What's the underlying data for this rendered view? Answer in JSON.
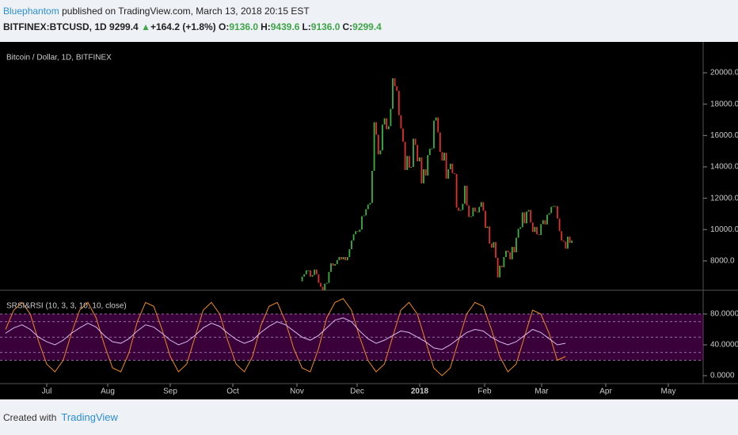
{
  "header": {
    "author": "Bluephantom",
    "published": "published on TradingView.com, March 13, 2018 20:15 EST",
    "symbol": "BITFINEX:BTCUSD, 1D",
    "last": "9299.4",
    "arrow": "▲",
    "change": "+164.2 (+1.8%)",
    "ohlc": [
      {
        "label": "O:",
        "value": "9136.0"
      },
      {
        "label": "H:",
        "value": "9439.6"
      },
      {
        "label": "L:",
        "value": "9136.0"
      },
      {
        "label": "C:",
        "value": "9299.4"
      }
    ]
  },
  "chart_data": [
    {
      "type": "candlestick",
      "title": "Bitcoin / Dollar, 1D, BITFINEX",
      "up_color": "#3cb043",
      "down_color": "#e0302f",
      "values": [
        6700,
        7000,
        7150,
        7400,
        7400,
        7000,
        7100,
        7450,
        7150,
        6600,
        6350,
        5900,
        6550,
        6600,
        7300,
        7850,
        7700,
        7800,
        8050,
        8250,
        8100,
        8250,
        8050,
        8250,
        8750,
        9300,
        9700,
        9900,
        9850,
        10000,
        10850,
        10900,
        11300,
        11600,
        11700,
        13750,
        16850,
        16050,
        14800,
        15050,
        16700,
        17100,
        16400,
        16600,
        17700,
        19650,
        19140,
        18850,
        17300,
        16450,
        15600,
        13800,
        14700,
        13950,
        14000,
        15800,
        15400,
        14350,
        14600,
        12950,
        13850,
        13450,
        14750,
        15150,
        15180,
        16950,
        17150,
        16200,
        14950,
        14400,
        14900,
        13250,
        13850,
        14200,
        13600,
        13550,
        11400,
        11200,
        11250,
        11650,
        12800,
        11550,
        10800,
        10850,
        11400,
        11150,
        11100,
        11450,
        11750,
        11200,
        10100,
        10200,
        9100,
        8850,
        9200,
        8200,
        6950,
        7700,
        7600,
        8250,
        8650,
        8550,
        8100,
        8900,
        8550,
        9480,
        10050,
        10150,
        11100,
        10400,
        11150,
        11250,
        10450,
        9850,
        10170,
        9700,
        9650,
        10350,
        10600,
        10330,
        10950,
        11050,
        11450,
        11500,
        11500,
        10700,
        9900,
        9300,
        9230,
        8780,
        9550,
        9150,
        9299.4
      ],
      "ylim": [
        6130,
        21970
      ],
      "yticks": [
        {
          "value": 8000,
          "label": "8000.0"
        },
        {
          "value": 10000,
          "label": "10000.0"
        },
        {
          "value": 12000,
          "label": "12000.0"
        },
        {
          "value": 14000,
          "label": "14000.0"
        },
        {
          "value": 16000,
          "label": "16000.0"
        },
        {
          "value": 18000,
          "label": "18000.0"
        },
        {
          "value": 20000,
          "label": "20000.0"
        }
      ]
    },
    {
      "type": "line",
      "title": "SRSI&RSI (10, 3, 3, 10, 10, close)",
      "band": [
        20,
        80
      ],
      "band_color": "rgba(128,0,128,0.45)",
      "levels": [
        80,
        70,
        50,
        30,
        20
      ],
      "series": [
        {
          "color": "#f08a24",
          "values": [
            60,
            85,
            95,
            80,
            45,
            15,
            5,
            20,
            55,
            85,
            95,
            75,
            40,
            10,
            5,
            30,
            70,
            95,
            90,
            60,
            25,
            5,
            15,
            50,
            85,
            95,
            80,
            45,
            15,
            5,
            25,
            65,
            90,
            95,
            70,
            35,
            10,
            5,
            35,
            75,
            95,
            100,
            85,
            50,
            20,
            5,
            15,
            50,
            85,
            95,
            80,
            45,
            10,
            0,
            10,
            45,
            80,
            95,
            90,
            60,
            25,
            5,
            15,
            50,
            85,
            80,
            55,
            20,
            25
          ]
        },
        {
          "color": "#d9b8f0",
          "values": [
            55,
            62,
            66,
            60,
            50,
            44,
            40,
            46,
            55,
            62,
            68,
            63,
            52,
            44,
            42,
            48,
            58,
            66,
            63,
            55,
            46,
            40,
            44,
            52,
            62,
            68,
            64,
            55,
            47,
            42,
            46,
            56,
            64,
            70,
            66,
            58,
            50,
            46,
            52,
            62,
            72,
            75,
            70,
            58,
            48,
            42,
            46,
            52,
            58,
            56,
            50,
            44,
            36,
            34,
            40,
            48,
            56,
            60,
            58,
            50,
            44,
            40,
            44,
            52,
            60,
            56,
            48,
            40,
            42
          ]
        }
      ],
      "ylim": [
        -10.26,
        109.74
      ],
      "yticks": [
        {
          "value": 0,
          "label": "0.0000"
        },
        {
          "value": 40,
          "label": "40.0000"
        },
        {
          "value": 80,
          "label": "80.0000"
        }
      ]
    }
  ],
  "x_axis": {
    "categories": [
      "Jul",
      "Aug",
      "Sep",
      "Oct",
      "Nov",
      "Dec",
      "2018",
      "Feb",
      "Mar",
      "Apr",
      "May"
    ]
  },
  "footer": {
    "created": "Created with",
    "brand": "TradingView"
  }
}
